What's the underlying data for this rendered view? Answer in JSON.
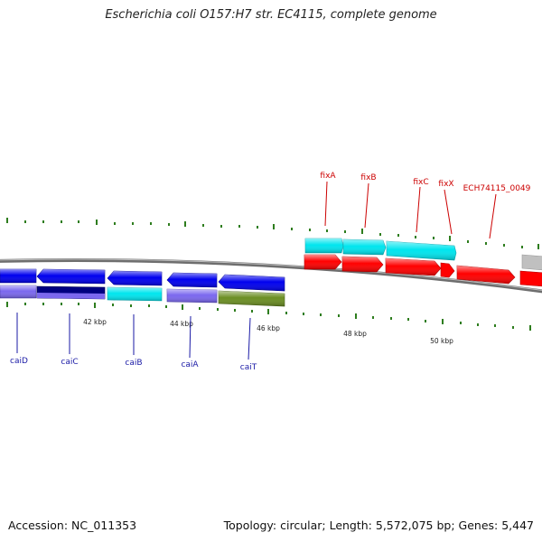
{
  "title": "Escherichia coli O157:H7 str. EC4115, complete genome",
  "footer": {
    "accession": "Accession: NC_011353",
    "summary": "Topology: circular; Length: 5,572,075 bp; Genes: 5,447"
  },
  "colors": {
    "backbone": "#7a7a7a",
    "tick": "#2e7d1e",
    "forward_label": "#cc0000",
    "reverse_label": "#1a1aa6",
    "red": "#ff0000",
    "cyan": "#00e5ee",
    "blue": "#0000ee",
    "slate": "#7b68ee",
    "navy": "#000080",
    "olive": "#6b8e23",
    "gray": "#c0c0c0"
  },
  "scale_labels": [
    "42 kbp",
    "44 kbp",
    "46 kbp",
    "48 kbp",
    "50 kbp"
  ],
  "forward_labels": [
    "fixA",
    "fixB",
    "fixC",
    "fixX",
    "ECH74115_0049"
  ],
  "reverse_labels": [
    "caiD",
    "caiC",
    "caiB",
    "caiA",
    "caiT"
  ]
}
